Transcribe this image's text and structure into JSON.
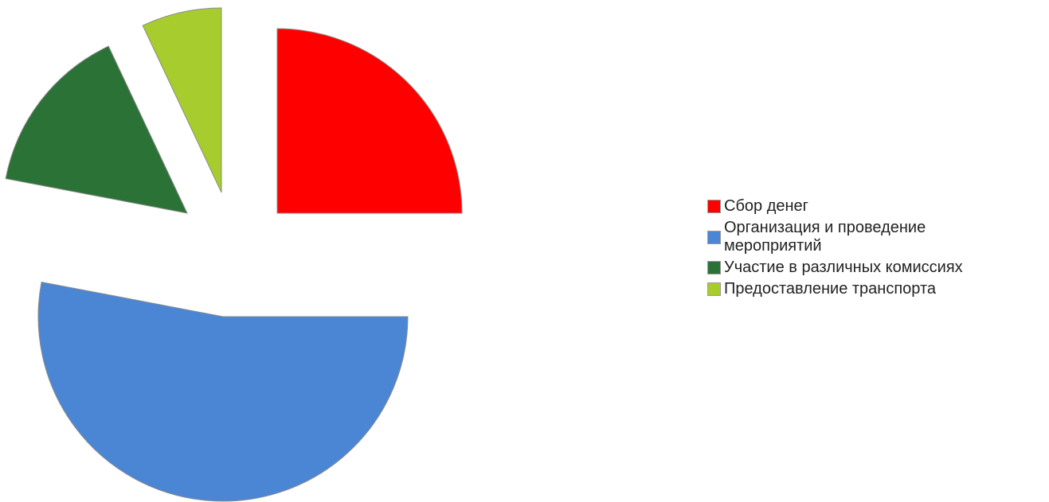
{
  "chart_data": {
    "type": "pie",
    "exploded": true,
    "categories": [
      "Сбор денег",
      "Организация и проведение мероприятий",
      "Участие в различных комиссиях",
      "Предоставление транспорта"
    ],
    "values": [
      25,
      53,
      15,
      7
    ],
    "colors": [
      "#ff0000",
      "#4a86d4",
      "#2a7236",
      "#a6cc2e"
    ],
    "title": "",
    "legend_position": "right"
  },
  "legend": [
    {
      "label": "Сбор денег",
      "color": "#ff0000"
    },
    {
      "label": "Организация и проведение мероприятий",
      "color": "#4a86d4"
    },
    {
      "label": "Участие в различных комиссиях",
      "color": "#2a7236"
    },
    {
      "label": "Предоставление транспорта",
      "color": "#a6cc2e"
    }
  ]
}
